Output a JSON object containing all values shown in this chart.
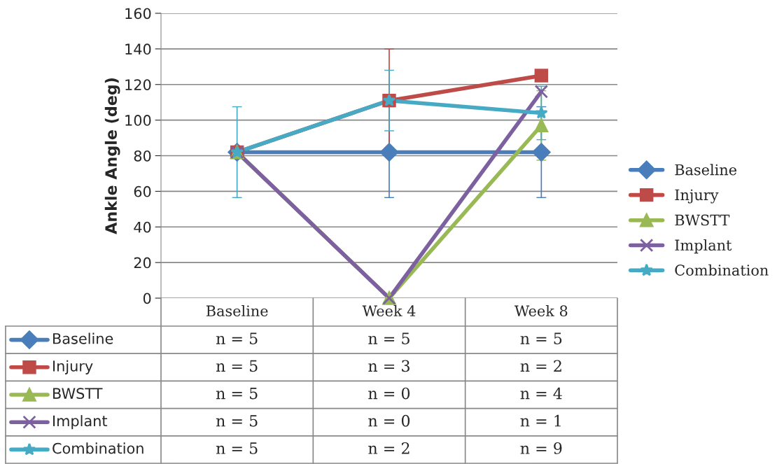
{
  "chart_data": {
    "type": "line",
    "ylabel": "Ankle Angle (deg)",
    "categories": [
      "Baseline",
      "Week 4",
      "Week 8"
    ],
    "series": [
      {
        "name": "Baseline",
        "color": "#4a7ebb",
        "marker": "diamond",
        "values": [
          82,
          82,
          82
        ],
        "errors": [
          null,
          25.5,
          25.5
        ]
      },
      {
        "name": "Injury",
        "color": "#be4b48",
        "marker": "square",
        "values": [
          82,
          111,
          125
        ],
        "errors": [
          null,
          29,
          null
        ]
      },
      {
        "name": "BWSTT",
        "color": "#98b954",
        "marker": "triangle",
        "values": [
          82,
          0,
          97
        ],
        "errors": [
          null,
          null,
          19.5
        ]
      },
      {
        "name": "Implant",
        "color": "#7d60a0",
        "marker": "cross",
        "values": [
          82,
          0,
          116
        ],
        "errors": [
          null,
          null,
          null
        ]
      },
      {
        "name": "Combination",
        "color": "#46aac5",
        "marker": "star",
        "values": [
          82,
          111,
          104
        ],
        "errors": [
          25.5,
          17,
          15
        ]
      }
    ],
    "ylim": [
      0,
      160
    ],
    "yticks": [
      0,
      20,
      40,
      60,
      80,
      100,
      120,
      140,
      160
    ],
    "grid": "y",
    "legend": "right",
    "annotations": [
      "n = 5",
      "n = 5",
      "n = 5",
      "n = 5",
      "n = 3",
      "n = 2",
      "n = 5",
      "n = 0",
      "n = 4",
      "n = 5",
      "n = 0",
      "n = 1",
      "n = 5",
      "n = 2",
      "n = 9"
    ]
  }
}
